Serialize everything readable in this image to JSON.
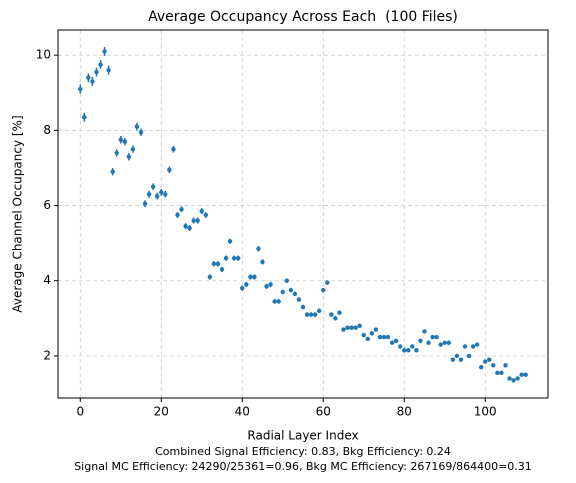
{
  "chart_data": {
    "type": "scatter",
    "title": "Average Occupancy Across Each  (100 Files)",
    "x_label": "Radial Layer Index",
    "y_label": "Average Channel Occupancy [%]",
    "annotations": [
      "Combined Signal Efficiency: 0.83, Bkg Efficiency: 0.24",
      "Signal MC Efficiency: 24290/25361=0.96, Bkg MC Efficiency: 267169/864400=0.31"
    ],
    "color": "#1f77b4",
    "grid": true,
    "xlim": [
      -5.5,
      115.5
    ],
    "ylim": [
      0.88,
      10.67
    ],
    "xticks": [
      0,
      20,
      40,
      60,
      80,
      100
    ],
    "yticks": [
      2,
      4,
      6,
      8,
      10
    ],
    "x": [
      0,
      1,
      2,
      3,
      4,
      5,
      6,
      7,
      8,
      9,
      10,
      11,
      12,
      13,
      14,
      15,
      16,
      17,
      18,
      19,
      20,
      21,
      22,
      23,
      24,
      25,
      26,
      27,
      28,
      29,
      30,
      31,
      32,
      33,
      34,
      35,
      36,
      37,
      38,
      39,
      40,
      41,
      42,
      43,
      44,
      45,
      46,
      47,
      48,
      49,
      50,
      51,
      52,
      53,
      54,
      55,
      56,
      57,
      58,
      59,
      60,
      61,
      62,
      63,
      64,
      65,
      66,
      67,
      68,
      69,
      70,
      71,
      72,
      73,
      74,
      75,
      76,
      77,
      78,
      79,
      80,
      81,
      82,
      83,
      84,
      85,
      86,
      87,
      88,
      89,
      90,
      91,
      92,
      93,
      94,
      95,
      96,
      97,
      98,
      99,
      100,
      101,
      102,
      103,
      104,
      105,
      106,
      107,
      108,
      109,
      110
    ],
    "values": [
      9.1,
      8.35,
      9.4,
      9.3,
      9.55,
      9.75,
      10.1,
      9.6,
      6.9,
      7.4,
      7.75,
      7.7,
      7.3,
      7.5,
      8.1,
      7.95,
      6.05,
      6.3,
      6.5,
      6.25,
      6.35,
      6.3,
      6.95,
      7.5,
      5.75,
      5.9,
      5.45,
      5.4,
      5.6,
      5.6,
      5.85,
      5.75,
      4.1,
      4.45,
      4.45,
      4.3,
      4.6,
      5.05,
      4.6,
      4.6,
      3.8,
      3.9,
      4.1,
      4.1,
      4.85,
      4.5,
      3.85,
      3.9,
      3.45,
      3.45,
      3.7,
      4.0,
      3.75,
      3.65,
      3.5,
      3.3,
      3.1,
      3.1,
      3.1,
      3.2,
      3.75,
      3.95,
      3.1,
      3.0,
      3.15,
      2.7,
      2.75,
      2.75,
      2.75,
      2.8,
      2.55,
      2.45,
      2.6,
      2.7,
      2.5,
      2.5,
      2.5,
      2.35,
      2.4,
      2.25,
      2.15,
      2.15,
      2.25,
      2.15,
      2.4,
      2.65,
      2.35,
      2.5,
      2.5,
      2.3,
      2.35,
      2.35,
      1.9,
      2.0,
      1.9,
      2.25,
      2.0,
      2.25,
      2.3,
      1.7,
      1.85,
      1.9,
      1.75,
      1.55,
      1.55,
      1.75,
      1.4,
      1.35,
      1.4,
      1.5,
      1.5
    ],
    "errors": [
      0.12,
      0.12,
      0.12,
      0.12,
      0.12,
      0.12,
      0.12,
      0.12,
      0.1,
      0.1,
      0.1,
      0.1,
      0.1,
      0.1,
      0.1,
      0.1,
      0.09,
      0.09,
      0.09,
      0.09,
      0.09,
      0.09,
      0.09,
      0.09,
      0.08,
      0.08,
      0.08,
      0.08,
      0.08,
      0.08,
      0.08,
      0.08,
      0.07,
      0.07,
      0.07,
      0.07,
      0.07,
      0.07,
      0.07,
      0.07,
      0.07,
      0.07,
      0.07,
      0.07,
      0.07,
      0.07,
      0.07,
      0.07,
      0.06,
      0.06,
      0.06,
      0.06,
      0.06,
      0.06,
      0.06,
      0.06,
      0.06,
      0.06,
      0.06,
      0.06,
      0.06,
      0.06,
      0.06,
      0.06,
      0.06,
      0.05,
      0.05,
      0.05,
      0.05,
      0.05,
      0.05,
      0.05,
      0.05,
      0.05,
      0.05,
      0.05,
      0.05,
      0.05,
      0.05,
      0.05,
      0.05,
      0.05,
      0.05,
      0.05,
      0.05,
      0.05,
      0.05,
      0.05,
      0.05,
      0.05,
      0.05,
      0.05,
      0.05,
      0.05,
      0.05,
      0.05,
      0.05,
      0.05,
      0.05,
      0.05,
      0.05,
      0.05,
      0.05,
      0.05,
      0.05,
      0.05,
      0.05,
      0.05,
      0.05,
      0.05,
      0.05
    ]
  }
}
